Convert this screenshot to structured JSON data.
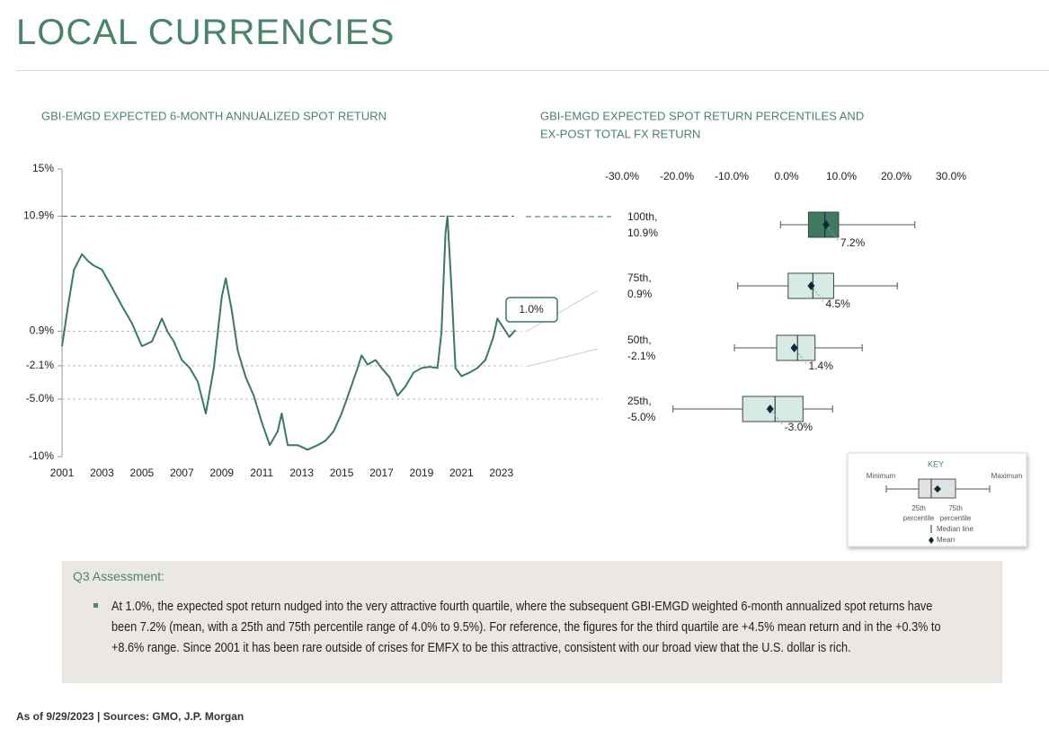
{
  "header": {
    "title": "LOCAL CURRENCIES"
  },
  "chart_data": [
    {
      "type": "line",
      "title": "GBI-EMGD EXPECTED 6-MONTH ANNUALIZED SPOT RETURN",
      "annotation": "1.0%",
      "x": [
        2001.0,
        2001.3,
        2001.6,
        2002.0,
        2002.3,
        2002.6,
        2003.0,
        2003.5,
        2004.0,
        2004.5,
        2005.0,
        2005.5,
        2006.0,
        2006.3,
        2006.6,
        2007.0,
        2007.4,
        2007.8,
        2008.2,
        2008.6,
        2009.0,
        2009.2,
        2009.5,
        2009.8,
        2010.2,
        2010.6,
        2011.0,
        2011.4,
        2011.8,
        2012.0,
        2012.3,
        2012.8,
        2013.3,
        2013.8,
        2014.2,
        2014.6,
        2015.0,
        2015.4,
        2015.8,
        2016.0,
        2016.3,
        2016.7,
        2017.0,
        2017.4,
        2017.8,
        2018.2,
        2018.6,
        2019.0,
        2019.4,
        2019.8,
        2020.0,
        2020.2,
        2020.3,
        2020.5,
        2020.7,
        2021.0,
        2021.4,
        2021.8,
        2022.2,
        2022.6,
        2022.8,
        2023.1,
        2023.4,
        2023.7
      ],
      "series": [
        {
          "name": "Expected spot return",
          "color": "#3b7a5c",
          "values": [
            -0.4,
            3.1,
            6.25,
            7.6,
            7.0,
            6.6,
            6.25,
            4.7,
            3.1,
            1.6,
            -0.4,
            0,
            2.0,
            0.8,
            0,
            -1.6,
            -2.3,
            -3.5,
            -6.25,
            -2.3,
            3.9,
            5.5,
            2.7,
            -0.8,
            -3.1,
            -4.7,
            -7.0,
            -9.0,
            -7.8,
            -6.25,
            -9.0,
            -9.0,
            -9.4,
            -9.0,
            -8.6,
            -7.8,
            -6.25,
            -4.3,
            -2.3,
            -1.2,
            -2.0,
            -1.6,
            -2.3,
            -3.1,
            -4.7,
            -3.9,
            -2.7,
            -2.3,
            -2.2,
            -2.3,
            0.8,
            9.4,
            10.9,
            4.7,
            -2.3,
            -3.0,
            -2.7,
            -2.3,
            -1.6,
            0.4,
            2.0,
            1.2,
            0.4,
            1.0
          ]
        }
      ],
      "xlim": [
        2001,
        2024
      ],
      "xticks": [
        2001,
        2003,
        2005,
        2007,
        2009,
        2011,
        2013,
        2015,
        2017,
        2019,
        2021,
        2023
      ],
      "ylim": [
        -10,
        15
      ],
      "yticks": [
        {
          "value": 15,
          "label": "15%"
        },
        {
          "value": 10.9,
          "label": "10.9%"
        },
        {
          "value": 0.9,
          "label": "0.9%"
        },
        {
          "value": -2.1,
          "label": "-2.1%"
        },
        {
          "value": -5.0,
          "label": "-5.0%"
        },
        {
          "value": -10,
          "label": "-10%"
        }
      ],
      "highlight_color": "#2f6b50"
    },
    {
      "type": "boxplot",
      "title": [
        "GBI-EMGD EXPECTED SPOT RETURN PERCENTILES AND",
        "EX-POST TOTAL FX RETURN"
      ],
      "xlim": [
        -30,
        30
      ],
      "xticks": [
        {
          "value": -30,
          "label": "-30.0%"
        },
        {
          "value": -20,
          "label": "-20.0%"
        },
        {
          "value": -10,
          "label": "-10.0%"
        },
        {
          "value": 0,
          "label": "0.0%"
        },
        {
          "value": 10,
          "label": "10.0%"
        },
        {
          "value": 20,
          "label": "20.0%"
        },
        {
          "value": 30,
          "label": "30.0%"
        }
      ],
      "rows": [
        {
          "label": [
            "100th,",
            "10.9%"
          ],
          "min": -1.1,
          "q1": 4.0,
          "median": 7.0,
          "q3": 9.5,
          "max": 23.4,
          "mean": 7.2,
          "mean_label": "7.2%",
          "color": "#3d7a5f"
        },
        {
          "label": [
            "75th,",
            "0.9%"
          ],
          "min": -8.9,
          "q1": 0.3,
          "median": 4.8,
          "q3": 8.6,
          "max": 20.2,
          "mean": 4.5,
          "mean_label": "4.5%",
          "color": "#d6ebe3"
        },
        {
          "label": [
            "50th,",
            "-2.1%"
          ],
          "min": -9.5,
          "q1": -1.8,
          "median": 2.0,
          "q3": 5.2,
          "max": 13.8,
          "mean": 1.4,
          "mean_label": "1.4%",
          "color": "#d6ebe3"
        },
        {
          "label": [
            "25th,",
            "-5.0%"
          ],
          "min": -20.7,
          "q1": -8.0,
          "median": -2.1,
          "q3": 3.0,
          "max": 8.4,
          "mean": -3.0,
          "mean_label": "-3.0%",
          "color": "#d6ebe3"
        }
      ]
    }
  ],
  "key": {
    "title": "KEY",
    "minimum": "Minimum",
    "maximum": "Maximum",
    "q1": [
      "25th",
      "percentile"
    ],
    "q3": [
      "75th",
      "percentile"
    ],
    "median": "Median line",
    "mean": "Mean"
  },
  "assessment": {
    "heading": "Q3 Assessment:",
    "bullets": [
      "At 1.0%, the expected spot return nudged into the very attractive fourth quartile, where the subsequent GBI-EMGD weighted 6-month annualized spot returns have been 7.2% (mean, with a 25th and 75th percentile range of 4.0% to 9.5%). For reference, the figures for the third quartile are +4.5% mean return and in the +0.3% to +8.6% range.  Since 2001 it has been rare outside of crises for EMFX to be this attractive, consistent with our broad view that the U.S. dollar is rich."
    ]
  },
  "footer": {
    "source": "As of 9/29/2023 | Sources: GMO, J.P. Morgan"
  }
}
